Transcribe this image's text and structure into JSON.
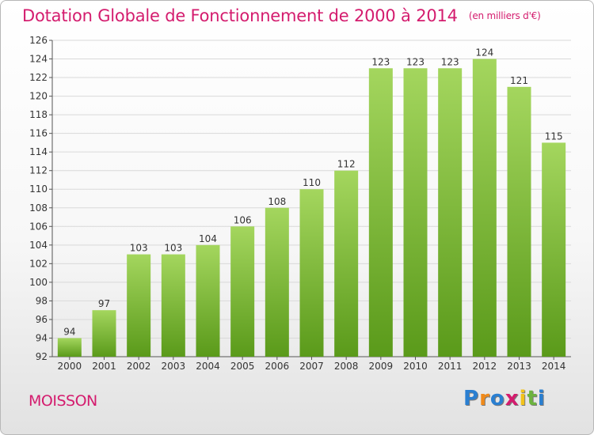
{
  "title": "Dotation Globale de Fonctionnement de 2000 à 2014",
  "unit_note": "(en milliers d'€)",
  "commune": "MOISSON",
  "logo": {
    "letters": [
      "P",
      "r",
      "o",
      "x",
      "i",
      "t",
      "i"
    ],
    "colors": [
      "#2a7fd1",
      "#f08a1a",
      "#2a7fd1",
      "#d41c6e",
      "#f2c21a",
      "#6cb33f",
      "#2a7fd1"
    ]
  },
  "colors": {
    "accent": "#d41c6e",
    "bar_light": "#a4d65e",
    "bar_dark": "#5a9a1a"
  },
  "chart_data": {
    "type": "bar",
    "categories": [
      "2000",
      "2001",
      "2002",
      "2003",
      "2004",
      "2005",
      "2006",
      "2007",
      "2008",
      "2009",
      "2010",
      "2011",
      "2012",
      "2013",
      "2014"
    ],
    "values": [
      94,
      97,
      103,
      103,
      104,
      106,
      108,
      110,
      112,
      123,
      123,
      123,
      124,
      121,
      115
    ],
    "data_labels": [
      "94",
      "97",
      "103",
      "103",
      "104",
      "106",
      "108",
      "110",
      "112",
      "123",
      "123",
      "123",
      "124",
      "121",
      "115"
    ],
    "ylim": [
      92,
      126
    ],
    "yticks": [
      92,
      94,
      96,
      98,
      100,
      102,
      104,
      106,
      108,
      110,
      112,
      114,
      116,
      118,
      120,
      122,
      124,
      126
    ],
    "grid": true,
    "legend": "none"
  }
}
